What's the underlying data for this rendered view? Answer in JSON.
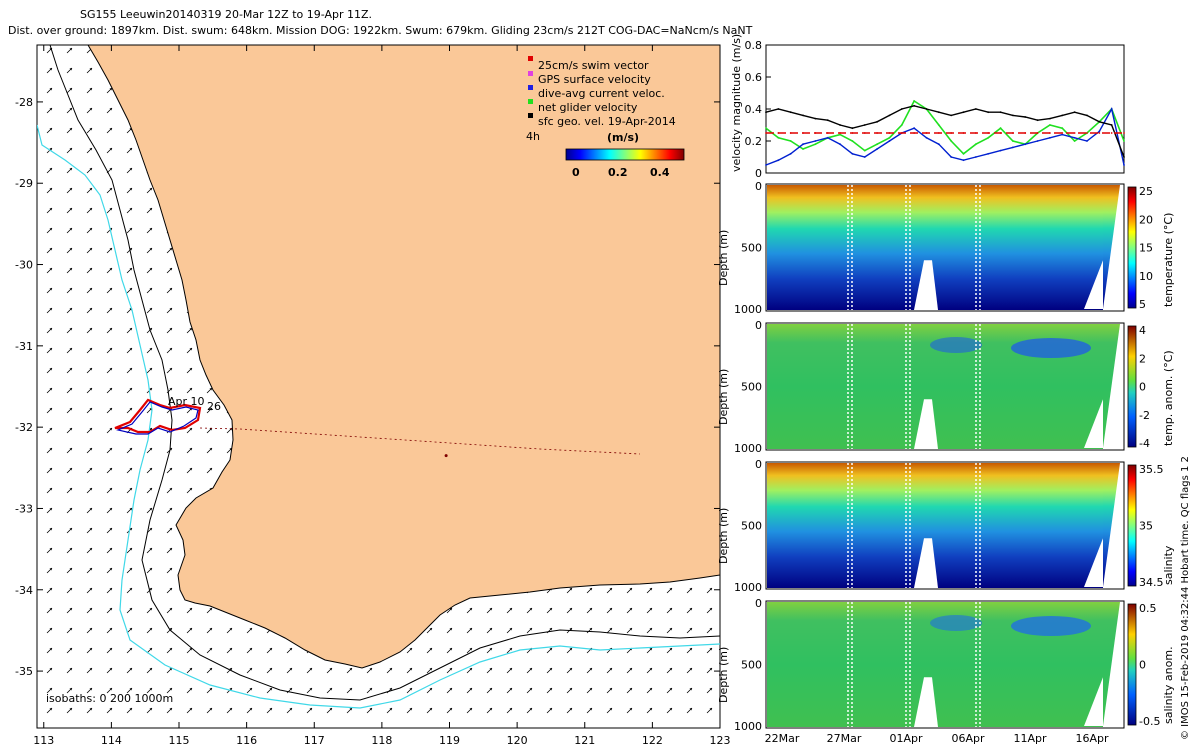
{
  "header": {
    "line1": "SG155 Leeuwin20140319 20-Mar 12Z to 19-Apr 11Z.",
    "line2": "Dist. over ground: 1897km. Dist. swum: 648km. Mission DOG: 1922km. Swum: 679km. Gliding 23cm/s 212T COG-DAC=NaNcm/s NaNT"
  },
  "credit": "© IMOS 15-Feb-2019 04:32:44 Hobart time. QC flags 1  2",
  "colors": {
    "land": "#FAC898",
    "coast": "#000000",
    "isobath": "#000000",
    "isobath_deep": "#40D8E8",
    "track_red": "#E00000",
    "track_blue": "#0000C0",
    "series_black": "#000000",
    "series_blue": "#0020D0",
    "series_green": "#20E020",
    "series_red": "#E00000"
  },
  "chart_data": [
    {
      "type": "map",
      "xlim": [
        112.9,
        123.0
      ],
      "ylim": [
        -35.7,
        -27.3
      ],
      "xticks": [
        113,
        114,
        115,
        116,
        117,
        118,
        119,
        120,
        121,
        122,
        123
      ],
      "yticks": [
        -28,
        -29,
        -30,
        -31,
        -32,
        -33,
        -34,
        -35
      ],
      "legend": {
        "position": "top-right",
        "items": [
          {
            "label": "25cm/s swim vector",
            "color": "#E00000"
          },
          {
            "label": "GPS surface velocity",
            "color": "#E040E0"
          },
          {
            "label": "dive-avg current veloc.",
            "color": "#2020E0"
          },
          {
            "label": "net glider velocity",
            "color": "#20E020"
          },
          {
            "label": "sfc geo. vel. 19-Apr-2014",
            "color": "#000000"
          }
        ],
        "scale_label": "4h",
        "colorbar_title": "(m/s)",
        "colorbar_ticks": [
          "0",
          "0.2",
          "0.4"
        ]
      },
      "isobaths_label": "isobaths: 0   200  1000m",
      "track_labels": [
        "Apr 10",
        "26"
      ],
      "track_end_point": [
        118.95,
        -32.35
      ],
      "track_center": [
        114.45,
        -32.0
      ]
    },
    {
      "type": "line",
      "ylabel": "velocity magnitude (m/s)",
      "ylim": [
        0,
        0.8
      ],
      "yticks": [
        "0",
        "0.2",
        "0.4",
        "0.6",
        "0.8"
      ],
      "xrange_days": [
        0,
        30
      ],
      "series": [
        {
          "name": "net glider velocity",
          "color": "#20E020",
          "values": [
            0.28,
            0.22,
            0.2,
            0.15,
            0.18,
            0.22,
            0.24,
            0.2,
            0.14,
            0.18,
            0.22,
            0.3,
            0.45,
            0.4,
            0.3,
            0.2,
            0.12,
            0.18,
            0.22,
            0.28,
            0.2,
            0.18,
            0.25,
            0.3,
            0.28,
            0.2,
            0.25,
            0.32,
            0.4,
            0.2
          ]
        },
        {
          "name": "dive-avg current",
          "color": "#0020D0",
          "values": [
            0.05,
            0.08,
            0.12,
            0.18,
            0.2,
            0.22,
            0.18,
            0.12,
            0.1,
            0.15,
            0.2,
            0.25,
            0.28,
            0.22,
            0.18,
            0.1,
            0.08,
            0.1,
            0.12,
            0.14,
            0.16,
            0.18,
            0.2,
            0.22,
            0.24,
            0.22,
            0.2,
            0.26,
            0.4,
            0.05
          ]
        },
        {
          "name": "GPS surface velocity",
          "color": "#000000",
          "values": [
            0.38,
            0.4,
            0.38,
            0.36,
            0.34,
            0.33,
            0.3,
            0.28,
            0.3,
            0.32,
            0.36,
            0.4,
            0.42,
            0.4,
            0.38,
            0.36,
            0.38,
            0.4,
            0.38,
            0.38,
            0.36,
            0.35,
            0.33,
            0.34,
            0.36,
            0.38,
            0.36,
            0.32,
            0.3,
            0.1
          ]
        },
        {
          "name": "25cm/s swim",
          "color": "#E00000",
          "values": [
            0.25,
            0.25,
            0.25,
            0.25,
            0.25,
            0.25,
            0.25,
            0.25,
            0.25,
            0.25,
            0.25,
            0.25,
            0.25,
            0.25,
            0.25,
            0.25,
            0.25,
            0.25,
            0.25,
            0.25,
            0.25,
            0.25,
            0.25,
            0.25,
            0.25,
            0.25,
            0.25,
            0.25,
            0.25,
            0.25
          ]
        }
      ]
    },
    {
      "type": "heatmap",
      "ylabel": "Depth (m)",
      "yticks": [
        "0",
        "500",
        "1000"
      ],
      "cbar_label": "temperature (°C)",
      "cbar_ticks": [
        "25",
        "20",
        "15",
        "10",
        "5"
      ],
      "colormap": "jet"
    },
    {
      "type": "heatmap",
      "ylabel": "Depth (m)",
      "yticks": [
        "0",
        "500",
        "1000"
      ],
      "cbar_label": "temp. anom. (°C)",
      "cbar_ticks": [
        "4",
        "2",
        "0",
        "-2",
        "-4"
      ],
      "colormap": "anomaly"
    },
    {
      "type": "heatmap",
      "ylabel": "Depth (m)",
      "yticks": [
        "0",
        "500",
        "1000"
      ],
      "cbar_label": "salinity",
      "cbar_ticks": [
        "35.5",
        "35",
        "34.5"
      ],
      "colormap": "jet"
    },
    {
      "type": "heatmap",
      "ylabel": "Depth (m)",
      "yticks": [
        "0",
        "500",
        "1000"
      ],
      "cbar_label": "salinity anom.",
      "cbar_ticks": [
        "0.5",
        "0",
        "-0.5"
      ],
      "colormap": "anomaly",
      "xticks": [
        "22Mar",
        "27Mar",
        "01Apr",
        "06Apr",
        "11Apr",
        "16Apr"
      ]
    }
  ]
}
